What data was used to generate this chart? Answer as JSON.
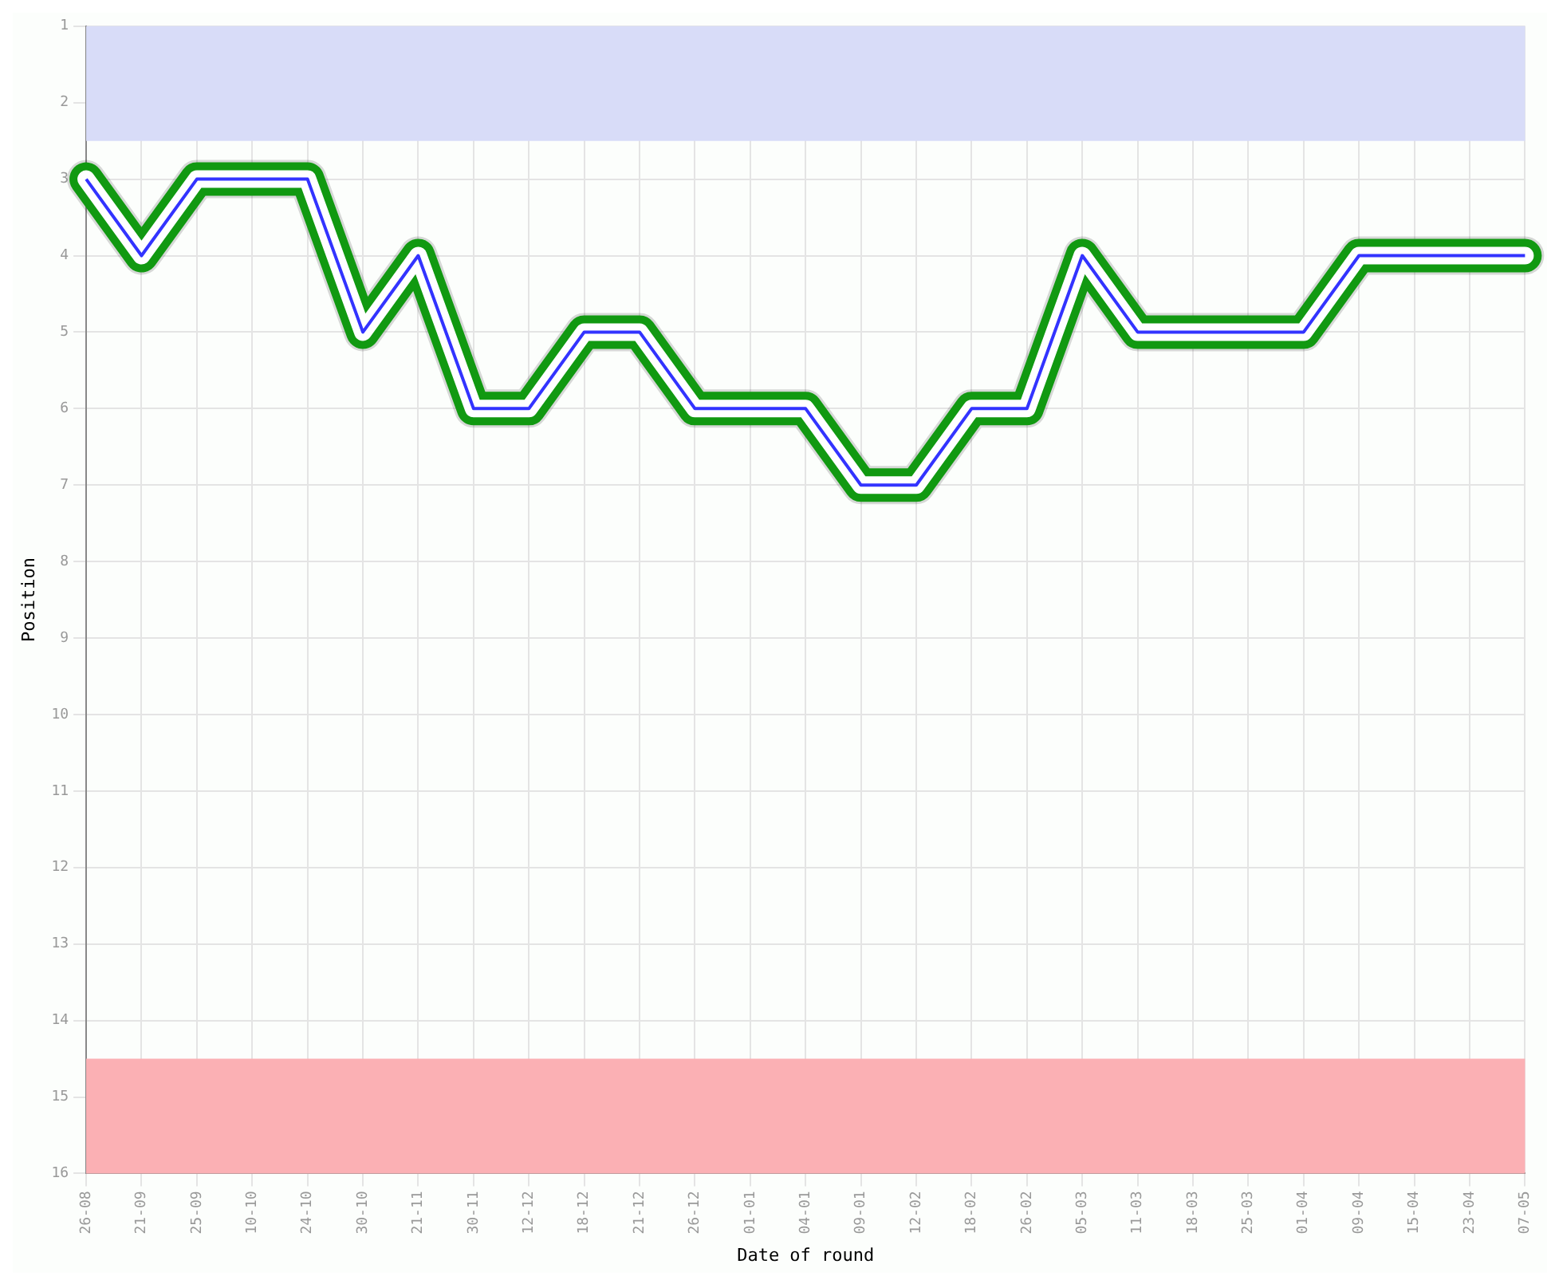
{
  "chart_data": {
    "type": "line",
    "xlabel": "Date of round",
    "ylabel": "Position",
    "categories": [
      "26-08",
      "21-09",
      "25-09",
      "10-10",
      "24-10",
      "30-10",
      "21-11",
      "30-11",
      "12-12",
      "18-12",
      "21-12",
      "26-12",
      "01-01",
      "04-01",
      "09-01",
      "12-02",
      "18-02",
      "26-02",
      "05-03",
      "11-03",
      "18-03",
      "25-03",
      "01-04",
      "09-04",
      "15-04",
      "23-04",
      "07-05"
    ],
    "series": [
      {
        "color": "#3333ff",
        "values": [
          3,
          4,
          3,
          3,
          3,
          5,
          4,
          6,
          6,
          5,
          5,
          6,
          6,
          6,
          7,
          7,
          6,
          6,
          4,
          5,
          5,
          5,
          5,
          4,
          4,
          4,
          4
        ]
      }
    ],
    "ylim": [
      16,
      1
    ],
    "yticks": [
      1,
      2,
      3,
      4,
      5,
      6,
      7,
      8,
      9,
      10,
      11,
      12,
      13,
      14,
      15,
      16
    ],
    "bands": [
      {
        "axis": "y",
        "from": 1,
        "to": 2.5,
        "color": "#d8dcf8"
      },
      {
        "axis": "y",
        "from": 14.5,
        "to": 16,
        "color": "#fbb0b4"
      }
    ],
    "grid": true,
    "legend": false,
    "marker": "none",
    "line_style": "solid"
  }
}
